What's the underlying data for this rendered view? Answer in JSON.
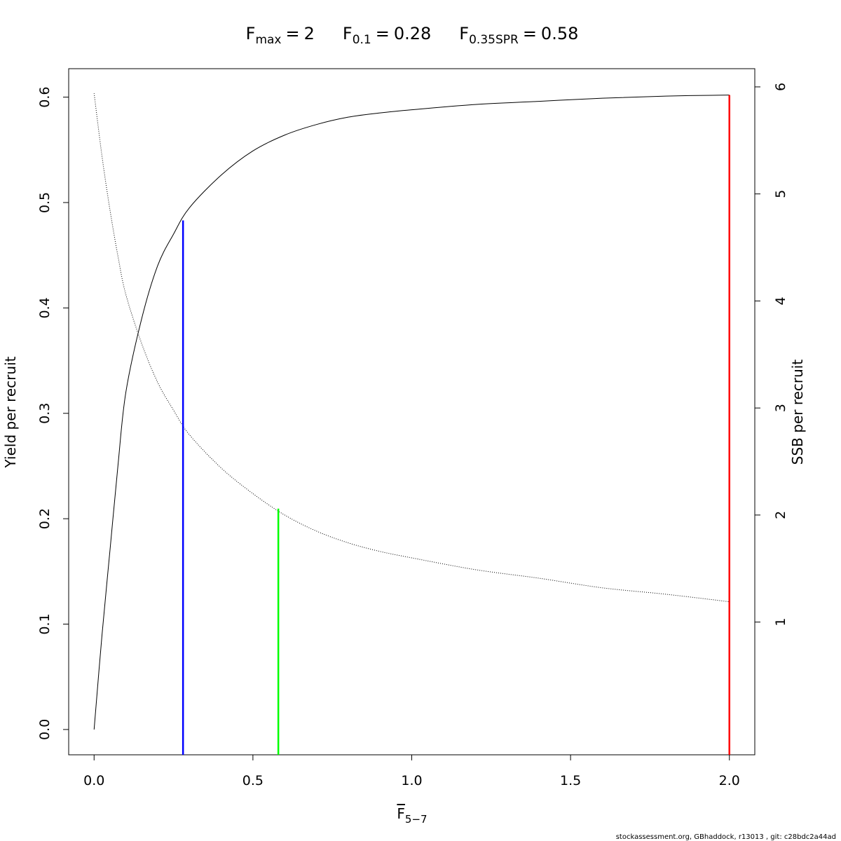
{
  "chart_data": {
    "type": "line",
    "title": [
      {
        "base": "F",
        "sub": "max",
        "relation": "=",
        "value": 2
      },
      {
        "base": "F",
        "sub": "0.1",
        "relation": "=",
        "value": 0.28
      },
      {
        "base": "F",
        "sub": "0.35SPR",
        "relation": "=",
        "value": 0.58
      }
    ],
    "x_label": {
      "base": "F",
      "sub": "5−7"
    },
    "y_label": "Yield per recruit",
    "y2_label": "SSB per recruit",
    "x": [
      0,
      0.025,
      0.05,
      0.075,
      0.1,
      0.15,
      0.2,
      0.25,
      0.3,
      0.4,
      0.5,
      0.6,
      0.7,
      0.8,
      0.9,
      1.0,
      1.2,
      1.4,
      1.6,
      1.8,
      2.0
    ],
    "series": [
      {
        "axis": "y",
        "color": "#000000",
        "style": "solid",
        "values": [
          0,
          0.09,
          0.17,
          0.25,
          0.32,
          0.39,
          0.44,
          0.47,
          0.495,
          0.526,
          0.549,
          0.564,
          0.574,
          0.581,
          0.585,
          0.588,
          0.593,
          0.596,
          0.599,
          0.601,
          0.602
        ]
      },
      {
        "axis": "y2",
        "color": "#000000",
        "style": "dotted",
        "values": [
          5.94,
          5.35,
          4.85,
          4.42,
          4.06,
          3.6,
          3.24,
          2.98,
          2.75,
          2.44,
          2.2,
          2.0,
          1.85,
          1.74,
          1.66,
          1.6,
          1.49,
          1.41,
          1.32,
          1.26,
          1.19
        ]
      }
    ],
    "ref_lines": [
      {
        "x": 0.28,
        "y": 0.483,
        "axis": "y",
        "color": "#0000ff"
      },
      {
        "x": 0.58,
        "y": 2.06,
        "axis": "y2",
        "color": "#00ff00"
      },
      {
        "x": 2,
        "y": 0.602,
        "axis": "y",
        "color": "#ff0000"
      }
    ],
    "xlim": [
      -0.08,
      2.08
    ],
    "xticks": [
      {
        "value": 0,
        "label": "0.0"
      },
      0.5,
      {
        "value": 1,
        "label": "1.0"
      },
      1.5,
      {
        "value": 2,
        "label": "2.0"
      }
    ],
    "ylim": [
      -0.024,
      0.627
    ],
    "yticks": [
      {
        "value": 0,
        "label": "0.0"
      },
      0.1,
      0.2,
      0.3,
      0.4,
      0.5,
      0.6
    ],
    "y2lim": [
      -0.24,
      6.17
    ],
    "y2ticks": [
      1,
      2,
      3,
      4,
      5,
      6
    ],
    "grid": false
  },
  "footer": "stockassessment.org, GBhaddock, r13013 , git: c28bdc2a44ad"
}
